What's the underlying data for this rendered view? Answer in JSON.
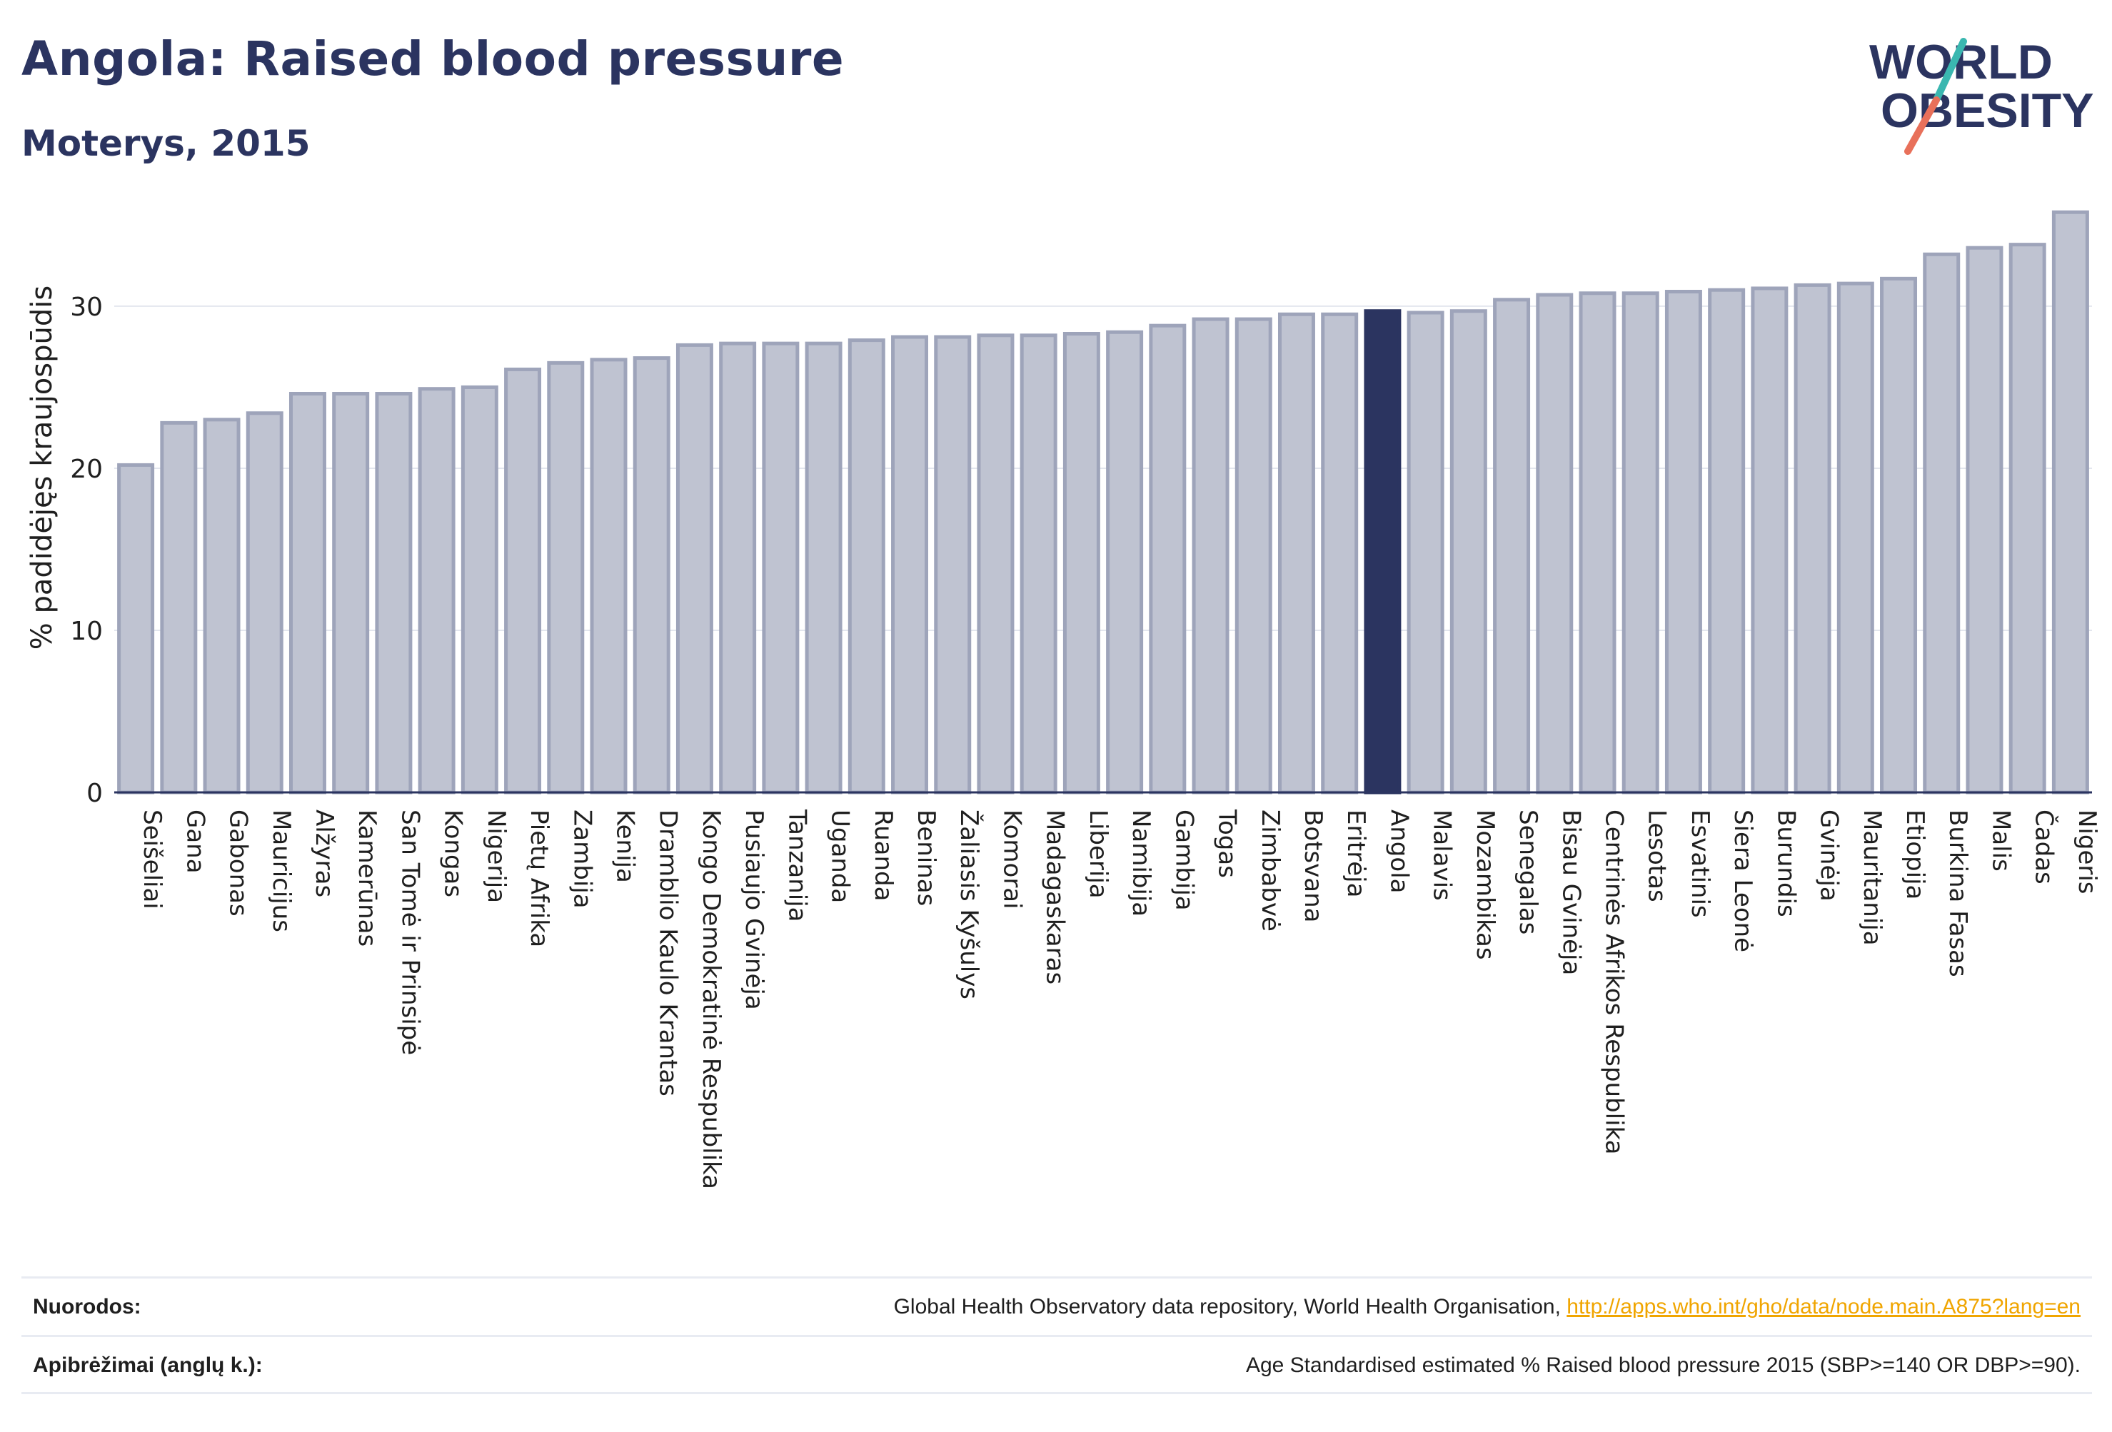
{
  "header": {
    "title": "Angola: Raised blood pressure",
    "subtitle": "Moterys, 2015"
  },
  "logo": {
    "line1": "WORLD",
    "line2": "OBESITY",
    "accent_teal": "#3ab7b0",
    "accent_coral": "#e8705a",
    "text_color": "#2b3460"
  },
  "colors": {
    "bar_default": "#bfc3d1",
    "bar_default_stroke": "#9ea4ba",
    "bar_highlight": "#2b3460",
    "axis": "#2b3460",
    "grid": "#e3e6ee"
  },
  "chart_data": {
    "type": "bar",
    "ylabel": "% padidėjęs kraujospūdis",
    "xlabel": "",
    "ylim": [
      0,
      37
    ],
    "yticks": [
      0,
      10,
      20,
      30
    ],
    "grid": true,
    "highlight": "Angola",
    "categories": [
      "Seišeliai",
      "Gana",
      "Gabonas",
      "Mauricijus",
      "Alžyras",
      "Kamerūnas",
      "San Tomė ir Prinsipė",
      "Kongas",
      "Nigerija",
      "Pietų Afrika",
      "Zambija",
      "Kenija",
      "Dramblio Kaulo Krantas",
      "Kongo Demokratinė Respublika",
      "Pusiaujo Gvinėja",
      "Tanzanija",
      "Uganda",
      "Ruanda",
      "Beninas",
      "Žaliasis Kyšulys",
      "Komorai",
      "Madagaskaras",
      "Liberija",
      "Namibija",
      "Gambija",
      "Togas",
      "Zimbabvė",
      "Botsvana",
      "Eritrėja",
      "Angola",
      "Malavis",
      "Mozambikas",
      "Senegalas",
      "Bisau Gvinėja",
      "Centrinės Afrikos Respublika",
      "Lesotas",
      "Esvatinis",
      "Siera Leonė",
      "Burundis",
      "Gvinėja",
      "Mauritanija",
      "Etiopija",
      "Burkina Fasas",
      "Malis",
      "Čadas",
      "Nigeris"
    ],
    "values": [
      20.2,
      22.8,
      23.0,
      23.4,
      24.6,
      24.6,
      24.6,
      24.9,
      25.0,
      26.1,
      26.5,
      26.7,
      26.8,
      27.6,
      27.7,
      27.7,
      27.7,
      27.9,
      28.1,
      28.1,
      28.2,
      28.2,
      28.3,
      28.4,
      28.8,
      29.2,
      29.2,
      29.5,
      29.5,
      29.7,
      29.6,
      29.7,
      30.4,
      30.7,
      30.8,
      30.8,
      30.9,
      31.0,
      31.1,
      31.3,
      31.4,
      31.7,
      33.2,
      33.6,
      33.8,
      35.8
    ]
  },
  "footer": {
    "sources_label": "Nuorodos:",
    "sources_text": "Global Health Observatory data repository, World Health Organisation, ",
    "sources_link": "http://apps.who.int/gho/data/node.main.A875?lang=en",
    "definitions_label": "Apibrėžimai (anglų k.):",
    "definitions_text": "Age Standardised estimated % Raised blood pressure 2015 (SBP>=140 OR DBP>=90)."
  }
}
